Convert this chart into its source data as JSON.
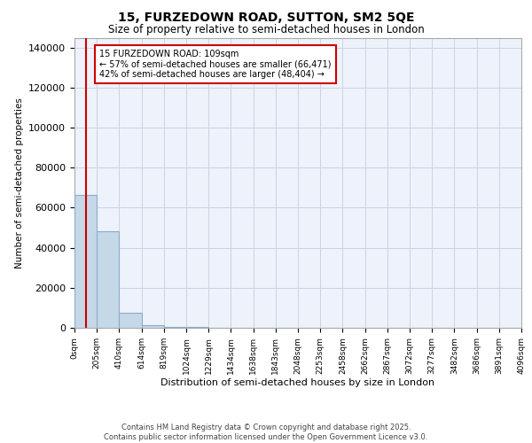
{
  "title": "15, FURZEDOWN ROAD, SUTTON, SM2 5QE",
  "subtitle": "Size of property relative to semi-detached houses in London",
  "xlabel": "Distribution of semi-detached houses by size in London",
  "ylabel": "Number of semi-detached properties",
  "property_size": 109,
  "annotation_title": "15 FURZEDOWN ROAD: 109sqm",
  "annotation_line1": "← 57% of semi-detached houses are smaller (66,471)",
  "annotation_line2": "42% of semi-detached houses are larger (48,404) →",
  "bin_edges": [
    0,
    205,
    410,
    614,
    819,
    1024,
    1229,
    1434,
    1638,
    1843,
    2048,
    2253,
    2458,
    2662,
    2867,
    3072,
    3277,
    3482,
    3686,
    3891,
    4096
  ],
  "bin_counts": [
    66471,
    48404,
    7500,
    1200,
    500,
    250,
    150,
    90,
    55,
    35,
    25,
    18,
    13,
    10,
    8,
    6,
    5,
    4,
    3,
    2
  ],
  "bar_color": "#C5D8E8",
  "bar_edge_color": "#8AACCC",
  "red_line_color": "#CC0000",
  "annotation_box_color": "#CC0000",
  "grid_color": "#C8D4E4",
  "background_color": "#EEF2FA",
  "ylim": [
    0,
    145000
  ],
  "yticks": [
    0,
    20000,
    40000,
    60000,
    80000,
    100000,
    120000,
    140000
  ],
  "footer": "Contains HM Land Registry data © Crown copyright and database right 2025.\nContains public sector information licensed under the Open Government Licence v3.0.",
  "tick_labels": [
    "0sqm",
    "205sqm",
    "410sqm",
    "614sqm",
    "819sqm",
    "1024sqm",
    "1229sqm",
    "1434sqm",
    "1638sqm",
    "1843sqm",
    "2048sqm",
    "2253sqm",
    "2458sqm",
    "2662sqm",
    "2867sqm",
    "3072sqm",
    "3277sqm",
    "3482sqm",
    "3686sqm",
    "3891sqm",
    "4096sqm"
  ]
}
